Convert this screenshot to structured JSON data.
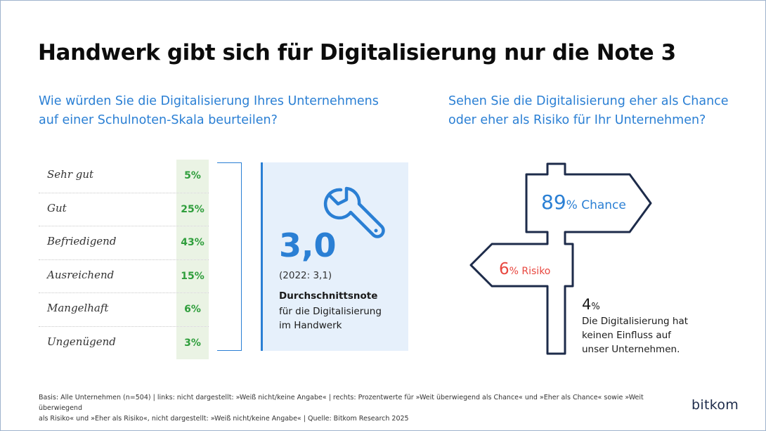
{
  "title": "Handwerk gibt sich für Digitalisierung nur die Note 3",
  "left_question": {
    "line1": "Wie würden Sie die Digitalisierung Ihres Unternehmens",
    "line2": "auf einer Schulnoten-Skala beurteilen?"
  },
  "right_question": {
    "line1": "Sehen Sie die Digitalisierung eher als Chance",
    "line2": "oder eher als Risiko für Ihr Unternehmen?"
  },
  "average": {
    "value": "3,0",
    "previous": "(2022: 3,1)",
    "label": "Durchschnittsnote",
    "sub1": "für die Digitalisierung",
    "sub2": "im Handwerk"
  },
  "signpost": {
    "chance_value": "89",
    "chance_label": "% Chance",
    "risk_value": "6",
    "risk_label": "% Risiko",
    "neutral_value": "4",
    "neutral_pct": "%",
    "neutral_line1": "Die Digitalisierung hat",
    "neutral_line2": "keinen Einfluss auf",
    "neutral_line3": "unser Unternehmen."
  },
  "footnote": {
    "line1": "Basis: Alle Unternehmen (n=504) | links: nicht dargestellt: »Weiß nicht/keine Angabe« | rechts: Prozentwerte für »Weit überwiegend als Chance« und »Eher als Chance« sowie »Weit überwiegend",
    "line2": "als Risiko« und »Eher als Risiko«, nicht dargestellt: »Weiß nicht/keine Angabe« | Quelle: Bitkom Research 2025"
  },
  "brand": "bitkom",
  "colors": {
    "accent": "#2a7fd4",
    "green": "#2f9e3c",
    "red": "#e8473f",
    "navy": "#1d2b4a"
  },
  "chart_data": [
    {
      "type": "table",
      "title": "Wie würden Sie die Digitalisierung Ihres Unternehmens auf einer Schulnoten-Skala beurteilen?",
      "categories": [
        "Sehr gut",
        "Gut",
        "Befriedigend",
        "Ausreichend",
        "Mangelhaft",
        "Ungenügend"
      ],
      "values": [
        5,
        25,
        43,
        15,
        6,
        3
      ],
      "labels": [
        "5%",
        "25%",
        "43%",
        "15%",
        "6%",
        "3%"
      ],
      "unit": "%"
    },
    {
      "type": "pie",
      "title": "Sehen Sie die Digitalisierung eher als Chance oder eher als Risiko für Ihr Unternehmen?",
      "categories": [
        "Chance",
        "Risiko",
        "Kein Einfluss"
      ],
      "values": [
        89,
        6,
        4
      ],
      "unit": "%"
    }
  ]
}
